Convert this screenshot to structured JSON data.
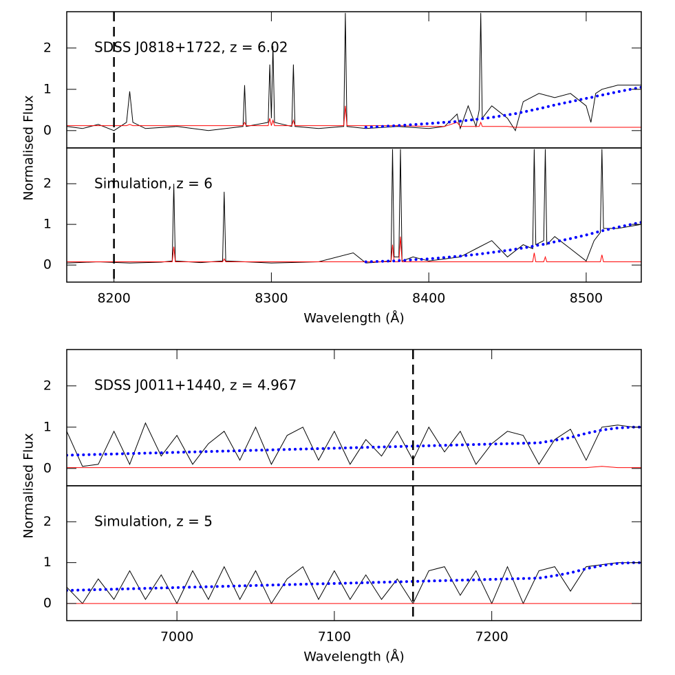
{
  "chart_data": [
    {
      "type": "line",
      "annotation": "SDSS J0818+1722, z = 6.02",
      "ylabel": "Normalised Flux",
      "xlim": [
        8170,
        8535
      ],
      "ylim": [
        -0.42,
        2.88
      ],
      "yticks": [
        0,
        1,
        2
      ],
      "vline": 8200,
      "x": [
        8170,
        8180,
        8190,
        8200,
        8208,
        8210,
        8212,
        8220,
        8240,
        8260,
        8282,
        8283,
        8284,
        8298,
        8299,
        8300,
        8301,
        8302,
        8313,
        8314,
        8315,
        8330,
        8346,
        8347,
        8348,
        8360,
        8380,
        8400,
        8410,
        8418,
        8420,
        8425,
        8430,
        8432,
        8433,
        8434,
        8440,
        8450,
        8455,
        8460,
        8470,
        8480,
        8490,
        8500,
        8503,
        8506,
        8510,
        8520,
        8535
      ],
      "series": [
        {
          "color": "#000000",
          "style": "solid",
          "values": [
            0.1,
            0.05,
            0.15,
            0.0,
            0.2,
            0.95,
            0.2,
            0.05,
            0.1,
            0.0,
            0.1,
            1.1,
            0.1,
            0.2,
            1.6,
            0.3,
            2.05,
            0.2,
            0.1,
            1.6,
            0.1,
            0.05,
            0.1,
            2.85,
            0.1,
            0.05,
            0.1,
            0.05,
            0.1,
            0.4,
            0.05,
            0.6,
            0.1,
            0.5,
            2.85,
            0.3,
            0.6,
            0.3,
            0.0,
            0.7,
            0.9,
            0.8,
            0.9,
            0.6,
            0.2,
            0.9,
            1.0,
            1.1,
            1.1
          ]
        },
        {
          "color": "#ff0000",
          "style": "solid",
          "values": [
            0.12,
            0.12,
            0.12,
            0.12,
            0.12,
            0.15,
            0.12,
            0.12,
            0.12,
            0.12,
            0.12,
            0.2,
            0.12,
            0.12,
            0.3,
            0.12,
            0.25,
            0.12,
            0.12,
            0.25,
            0.12,
            0.12,
            0.12,
            0.6,
            0.12,
            0.12,
            0.12,
            0.1,
            0.1,
            0.2,
            0.1,
            0.1,
            0.1,
            0.1,
            0.2,
            0.1,
            0.1,
            0.1,
            0.08,
            0.08,
            0.08,
            0.08,
            0.08,
            0.08,
            0.08,
            0.08,
            0.08,
            0.08,
            0.08
          ]
        },
        {
          "color": "#0000ff",
          "style": "dotted",
          "values": [
            null,
            null,
            null,
            null,
            null,
            null,
            null,
            null,
            null,
            null,
            null,
            null,
            null,
            null,
            null,
            null,
            null,
            null,
            null,
            null,
            null,
            null,
            null,
            null,
            null,
            0.08,
            0.12,
            0.17,
            0.2,
            0.22,
            0.23,
            0.25,
            0.27,
            0.28,
            0.28,
            0.29,
            0.32,
            0.38,
            0.41,
            0.45,
            0.53,
            0.62,
            0.7,
            0.78,
            0.8,
            0.83,
            0.86,
            0.94,
            1.05
          ]
        }
      ]
    },
    {
      "type": "line",
      "annotation": "Simulation, z = 6",
      "xlabel": "Wavelength (Å)",
      "xlim": [
        8170,
        8535
      ],
      "ylim": [
        -0.42,
        2.88
      ],
      "yticks": [
        0,
        1,
        2
      ],
      "xticks": [
        8200,
        8300,
        8400,
        8500
      ],
      "vline": 8200,
      "x": [
        8170,
        8190,
        8210,
        8230,
        8237,
        8238,
        8239,
        8255,
        8269,
        8270,
        8271,
        8300,
        8330,
        8352,
        8360,
        8376,
        8377,
        8378,
        8381,
        8382,
        8383,
        8390,
        8400,
        8420,
        8430,
        8440,
        8450,
        8460,
        8466,
        8467,
        8468,
        8473,
        8474,
        8475,
        8480,
        8490,
        8500,
        8505,
        8509,
        8510,
        8511,
        8520,
        8535
      ],
      "series": [
        {
          "color": "#000000",
          "style": "solid",
          "values": [
            0.05,
            0.08,
            0.05,
            0.07,
            0.1,
            2.0,
            0.1,
            0.06,
            0.1,
            1.8,
            0.1,
            0.05,
            0.08,
            0.3,
            0.05,
            0.1,
            2.85,
            0.2,
            0.2,
            2.85,
            0.1,
            0.2,
            0.1,
            0.2,
            0.4,
            0.6,
            0.2,
            0.5,
            0.4,
            2.85,
            0.5,
            0.6,
            2.85,
            0.5,
            0.7,
            0.4,
            0.1,
            0.6,
            0.8,
            2.85,
            0.9,
            0.9,
            1.0
          ]
        },
        {
          "color": "#ff0000",
          "style": "solid",
          "values": [
            0.08,
            0.08,
            0.08,
            0.08,
            0.08,
            0.45,
            0.08,
            0.08,
            0.08,
            0.15,
            0.08,
            0.08,
            0.08,
            0.08,
            0.08,
            0.08,
            0.5,
            0.08,
            0.08,
            0.7,
            0.08,
            0.08,
            0.08,
            0.08,
            0.08,
            0.08,
            0.08,
            0.08,
            0.08,
            0.3,
            0.08,
            0.08,
            0.2,
            0.08,
            0.08,
            0.08,
            0.08,
            0.08,
            0.08,
            0.25,
            0.08,
            0.08,
            0.08
          ]
        },
        {
          "color": "#0000ff",
          "style": "dotted",
          "values": [
            null,
            null,
            null,
            null,
            null,
            null,
            null,
            null,
            null,
            null,
            null,
            null,
            null,
            null,
            0.08,
            0.1,
            0.1,
            0.1,
            0.11,
            0.11,
            0.11,
            0.13,
            0.15,
            0.22,
            0.26,
            0.31,
            0.36,
            0.42,
            0.46,
            0.47,
            0.48,
            0.51,
            0.52,
            0.53,
            0.57,
            0.65,
            0.74,
            0.79,
            0.83,
            0.84,
            0.85,
            0.93,
            1.05
          ]
        }
      ]
    },
    {
      "type": "line",
      "annotation": "SDSS J0011+1440, z = 4.967",
      "ylabel": "Normalised Flux",
      "xlim": [
        6930,
        7295
      ],
      "ylim": [
        -0.42,
        2.88
      ],
      "yticks": [
        0,
        1,
        2
      ],
      "vline": 7150,
      "x": [
        6930,
        6940,
        6950,
        6960,
        6970,
        6980,
        6990,
        7000,
        7010,
        7020,
        7030,
        7040,
        7050,
        7060,
        7070,
        7080,
        7090,
        7100,
        7110,
        7120,
        7130,
        7140,
        7150,
        7160,
        7170,
        7180,
        7190,
        7200,
        7210,
        7220,
        7230,
        7240,
        7250,
        7260,
        7270,
        7280,
        7290,
        7295
      ],
      "series": [
        {
          "color": "#000000",
          "style": "solid",
          "values": [
            0.9,
            0.05,
            0.1,
            0.9,
            0.1,
            1.1,
            0.3,
            0.8,
            0.1,
            0.6,
            0.9,
            0.2,
            1.0,
            0.1,
            0.8,
            1.0,
            0.2,
            0.9,
            0.1,
            0.7,
            0.3,
            0.9,
            0.2,
            1.0,
            0.4,
            0.9,
            0.1,
            0.6,
            0.9,
            0.8,
            0.1,
            0.7,
            0.95,
            0.2,
            1.0,
            1.05,
            1.0,
            1.0
          ]
        },
        {
          "color": "#ff0000",
          "style": "solid",
          "values": [
            0.02,
            0.02,
            0.02,
            0.02,
            0.02,
            0.02,
            0.02,
            0.02,
            0.02,
            0.02,
            0.02,
            0.02,
            0.02,
            0.02,
            0.02,
            0.02,
            0.02,
            0.02,
            0.02,
            0.02,
            0.02,
            0.02,
            0.02,
            0.02,
            0.02,
            0.02,
            0.02,
            0.02,
            0.02,
            0.02,
            0.02,
            0.02,
            0.02,
            0.02,
            0.05,
            0.02,
            0.02,
            0.02
          ]
        },
        {
          "color": "#0000ff",
          "style": "dotted",
          "values": [
            0.32,
            0.33,
            0.34,
            0.35,
            0.36,
            0.37,
            0.38,
            0.39,
            0.4,
            0.41,
            0.42,
            0.43,
            0.44,
            0.45,
            0.46,
            0.47,
            0.48,
            0.49,
            0.5,
            0.51,
            0.52,
            0.53,
            0.54,
            0.55,
            0.56,
            0.57,
            0.58,
            0.59,
            0.6,
            0.61,
            0.62,
            0.68,
            0.75,
            0.85,
            0.93,
            0.98,
            1.0,
            1.0
          ]
        }
      ]
    },
    {
      "type": "line",
      "annotation": "Simulation, z = 5",
      "xlabel": "Wavelength (Å)",
      "xlim": [
        6930,
        7295
      ],
      "ylim": [
        -0.42,
        2.88
      ],
      "yticks": [
        0,
        1,
        2
      ],
      "xticks": [
        7000,
        7100,
        7200
      ],
      "vline": 7150,
      "x": [
        6930,
        6940,
        6950,
        6960,
        6970,
        6980,
        6990,
        7000,
        7010,
        7020,
        7030,
        7040,
        7050,
        7060,
        7070,
        7080,
        7090,
        7100,
        7110,
        7120,
        7130,
        7140,
        7150,
        7160,
        7170,
        7180,
        7190,
        7200,
        7210,
        7220,
        7230,
        7240,
        7250,
        7260,
        7270,
        7280,
        7290,
        7295
      ],
      "series": [
        {
          "color": "#000000",
          "style": "solid",
          "values": [
            0.4,
            0.0,
            0.6,
            0.1,
            0.8,
            0.1,
            0.7,
            0.0,
            0.8,
            0.1,
            0.9,
            0.1,
            0.8,
            0.0,
            0.6,
            0.9,
            0.1,
            0.8,
            0.1,
            0.7,
            0.1,
            0.6,
            0.0,
            0.8,
            0.9,
            0.2,
            0.8,
            0.0,
            0.9,
            0.0,
            0.8,
            0.9,
            0.3,
            0.9,
            0.95,
            1.0,
            1.0,
            1.0
          ]
        },
        {
          "color": "#ff0000",
          "style": "solid",
          "values": [
            0,
            0,
            0,
            0,
            0,
            0,
            0,
            0,
            0,
            0,
            0,
            0,
            0,
            0,
            0,
            0,
            0,
            0,
            0,
            0,
            0,
            0,
            0,
            0,
            0,
            0,
            0,
            0,
            0,
            0,
            0,
            0,
            0,
            0,
            0,
            0,
            0,
            0
          ]
        },
        {
          "color": "#0000ff",
          "style": "dotted",
          "values": [
            0.32,
            0.33,
            0.34,
            0.35,
            0.36,
            0.37,
            0.38,
            0.39,
            0.4,
            0.41,
            0.42,
            0.43,
            0.44,
            0.45,
            0.46,
            0.47,
            0.48,
            0.49,
            0.5,
            0.51,
            0.52,
            0.53,
            0.54,
            0.55,
            0.56,
            0.57,
            0.58,
            0.59,
            0.6,
            0.61,
            0.62,
            0.68,
            0.75,
            0.85,
            0.93,
            0.98,
            1.0,
            1.0
          ]
        }
      ]
    }
  ]
}
